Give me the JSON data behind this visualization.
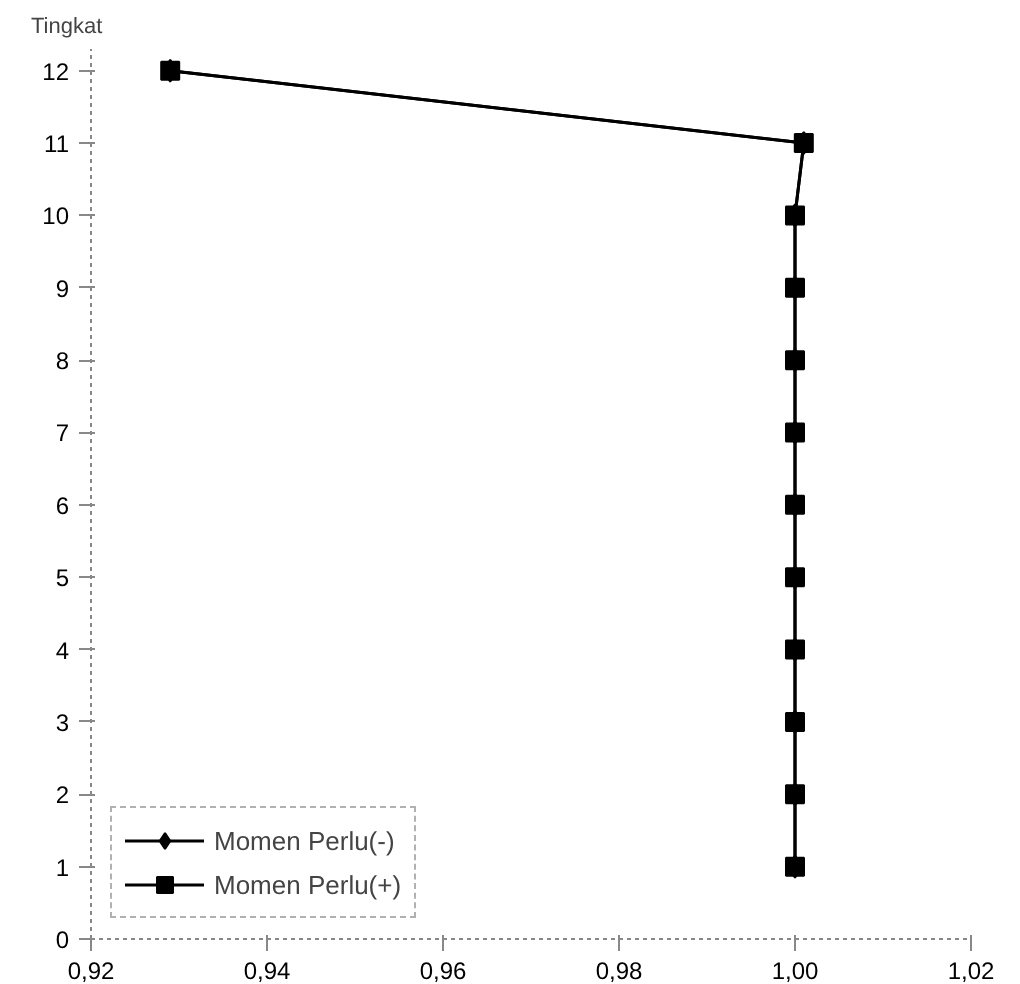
{
  "chart_data": {
    "type": "line",
    "ylabel": "Tingkat",
    "series": [
      {
        "name": "Momen Perlu(-)",
        "color": "#000000",
        "marker": "diamond",
        "x": [
          1.0,
          1.0,
          1.0,
          1.0,
          1.0,
          1.0,
          1.0,
          1.0,
          1.0,
          1.0,
          1.001,
          0.929
        ],
        "values": [
          1,
          2,
          3,
          4,
          5,
          6,
          7,
          8,
          9,
          10,
          11,
          12
        ]
      },
      {
        "name": "Momen Perlu(+)",
        "color": "#000000",
        "marker": "square",
        "x": [
          1.0,
          1.0,
          1.0,
          1.0,
          1.0,
          1.0,
          1.0,
          1.0,
          1.0,
          1.0,
          1.001,
          0.929
        ],
        "values": [
          1,
          2,
          3,
          4,
          5,
          6,
          7,
          8,
          9,
          10,
          11,
          12
        ]
      }
    ],
    "xlim": [
      0.92,
      1.02
    ],
    "ylim": [
      0,
      12.3
    ],
    "xticks": [
      {
        "value": 0.92,
        "label": "0,92"
      },
      {
        "value": 0.94,
        "label": "0,94"
      },
      {
        "value": 0.96,
        "label": "0,96"
      },
      {
        "value": 0.98,
        "label": "0,98"
      },
      {
        "value": 1.0,
        "label": "1,00"
      },
      {
        "value": 1.02,
        "label": "1,02"
      }
    ],
    "yticks": [
      0,
      1,
      2,
      3,
      4,
      5,
      6,
      7,
      8,
      9,
      10,
      11,
      12
    ],
    "grid": false,
    "legend": "bottom left",
    "line_style": "solid"
  }
}
